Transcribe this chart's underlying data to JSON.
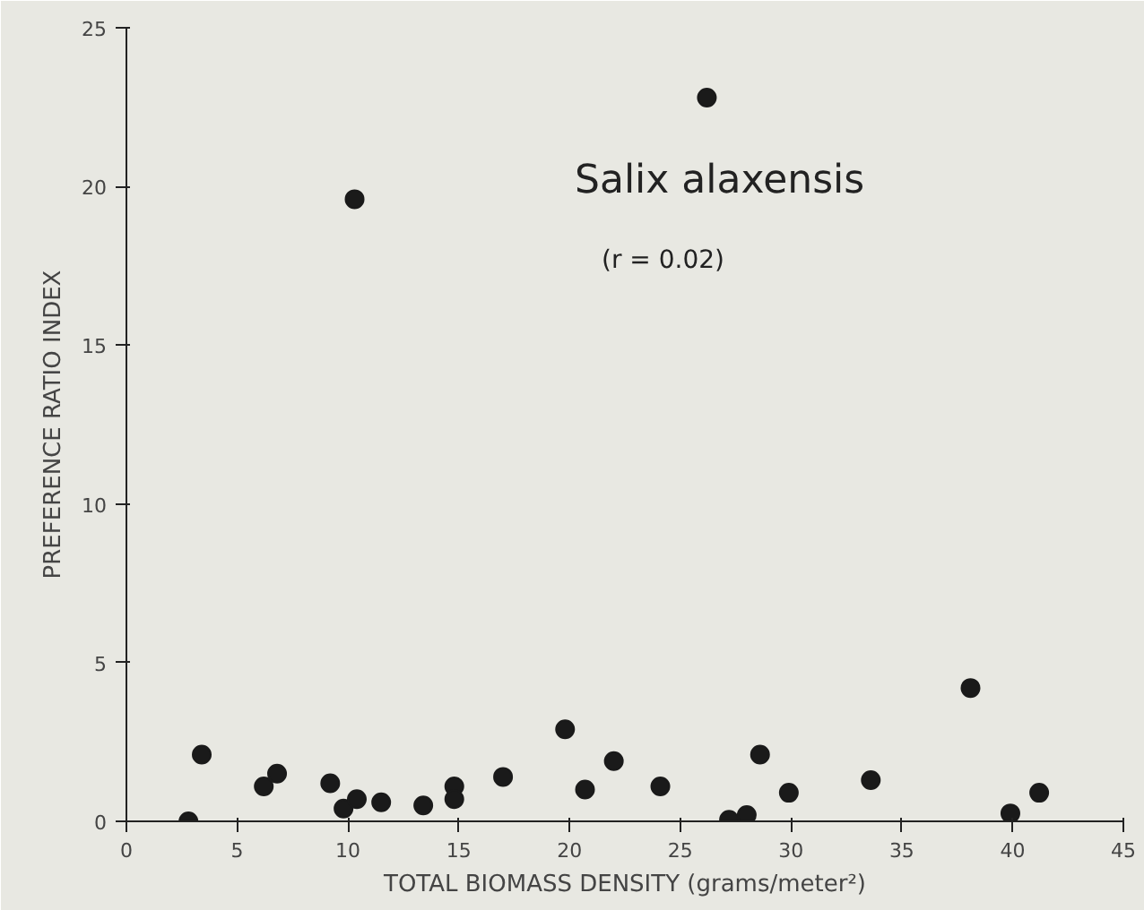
{
  "chart_data": {
    "type": "scatter",
    "xlabel": "TOTAL BIOMASS DENSITY (grams/meter²)",
    "ylabel": "PREFERENCE RATIO INDEX",
    "annotations": [
      "Salix alaxensis",
      "(r = 0.02)"
    ],
    "x": [
      2.8,
      3.4,
      6.2,
      6.8,
      9.2,
      9.8,
      10.4,
      11.5,
      13.4,
      14.8,
      14.8,
      17.0,
      19.8,
      20.7,
      22.0,
      24.1,
      27.2,
      28.0,
      28.6,
      29.9,
      33.6,
      38.1,
      39.9,
      41.2,
      10.3,
      26.2
    ],
    "values": [
      0,
      2.1,
      1.1,
      1.5,
      1.2,
      0.4,
      0.7,
      0.6,
      0.5,
      1.1,
      0.7,
      1.4,
      2.9,
      1.0,
      1.9,
      1.1,
      0.05,
      0.2,
      2.1,
      0.9,
      1.3,
      4.2,
      0.25,
      0.9,
      19.6,
      22.8
    ],
    "color": "#1a1a1a",
    "marker": "circle",
    "xlim": [
      0,
      45
    ],
    "xticks": [
      0,
      5,
      10,
      15,
      20,
      25,
      30,
      35,
      40,
      45
    ],
    "ylim": [
      0,
      25
    ],
    "yticks": [
      0,
      5,
      10,
      15,
      20,
      25
    ]
  }
}
